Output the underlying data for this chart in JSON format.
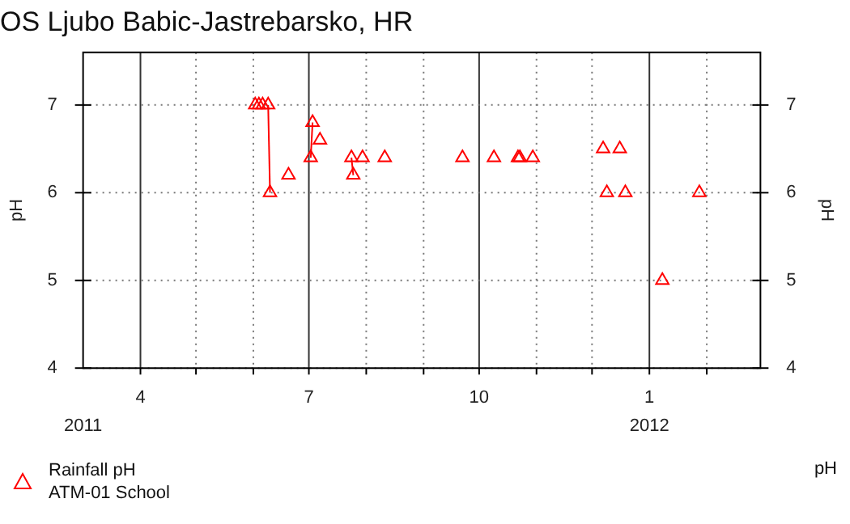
{
  "chart_data": {
    "type": "scatter",
    "title": "OS Ljubo Babic-Jastrebarsko, HR",
    "ylabel": "pH",
    "y2label": "pH",
    "xlim": [
      "2011-03-01",
      "2012-03-01"
    ],
    "x2lim": [
      "2011-03-01",
      "2012-03-01"
    ],
    "x2ticks": [
      {
        "value": "2011-03-01",
        "label": "2011"
      },
      {
        "value": "2012-01-01",
        "label": "2012"
      }
    ],
    "xticks": [
      {
        "value": "2011-04-01",
        "label": "4"
      },
      {
        "value": "2011-05-01",
        "label": null
      },
      {
        "value": "2011-06-01",
        "label": null
      },
      {
        "value": "2011-07-01",
        "label": "7"
      },
      {
        "value": "2011-08-01",
        "label": null
      },
      {
        "value": "2011-09-01",
        "label": null
      },
      {
        "value": "2011-10-01",
        "label": "10"
      },
      {
        "value": "2011-11-01",
        "label": null
      },
      {
        "value": "2011-12-01",
        "label": null
      },
      {
        "value": "2012-01-01",
        "label": "1"
      },
      {
        "value": "2012-02-01",
        "label": null
      }
    ],
    "ylim": [
      4,
      7.6
    ],
    "yticks": [
      4,
      5,
      6,
      7
    ],
    "y2lim": [
      4,
      7.6
    ],
    "y2ticks": [
      4,
      5,
      6,
      7
    ],
    "grid": true,
    "legend": "bottom left",
    "marker": "triangle",
    "annotations": [
      "pH"
    ],
    "series": [
      {
        "name": "Rainfall pH\nATM-01 School",
        "color": "#ff0000",
        "x": [
          "2011-06-02",
          "2011-06-04",
          "2011-06-06",
          "2011-06-09",
          "2011-06-10",
          "2011-06-20",
          "2011-07-02",
          "2011-07-03",
          "2011-07-07",
          "2011-07-24",
          "2011-07-25",
          "2011-07-30",
          "2011-08-11",
          "2011-09-22",
          "2011-10-09",
          "2011-10-22",
          "2011-10-23",
          "2011-10-30",
          "2011-12-07",
          "2011-12-09",
          "2011-12-16",
          "2011-12-19",
          "2012-01-08",
          "2012-01-28"
        ],
        "values": [
          7.0,
          7.0,
          7.0,
          7.0,
          6.0,
          6.2,
          6.4,
          6.8,
          6.6,
          6.4,
          6.2,
          6.4,
          6.4,
          6.4,
          6.4,
          6.4,
          6.4,
          6.4,
          6.5,
          6.0,
          6.5,
          6.0,
          5.0,
          6.0
        ]
      },
      {
        "type": "line",
        "color": "#ff0000",
        "marker": "none",
        "x": [
          "2011-06-09",
          "2011-06-10"
        ],
        "values": [
          7.0,
          6.0
        ]
      },
      {
        "type": "line",
        "color": "#ff0000",
        "marker": "none",
        "x": [
          "2011-07-02",
          "2011-07-03"
        ],
        "values": [
          6.4,
          6.8
        ]
      },
      {
        "type": "line",
        "color": "#ff0000",
        "marker": "none",
        "x": [
          "2011-07-24",
          "2011-07-25"
        ],
        "values": [
          6.4,
          6.2
        ]
      }
    ]
  }
}
